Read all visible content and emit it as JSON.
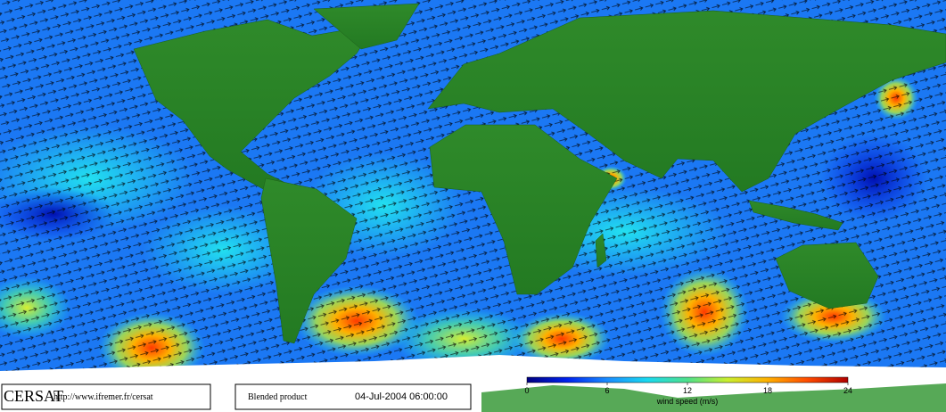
{
  "logo": "CERSAT",
  "url": "http://www.ifremer.fr/cersat",
  "product": "Blended product",
  "timestamp": "04-Jul-2004 06:00:00",
  "colorbar": {
    "label": "wind speed (m/s)",
    "range": [
      0,
      24
    ],
    "ticks": [
      0,
      6,
      12,
      18,
      24
    ],
    "colors": [
      "#000080",
      "#0022ee",
      "#1a8cff",
      "#19d9f0",
      "#4fe08a",
      "#c9ee2e",
      "#ffb000",
      "#ff4a00",
      "#b00000"
    ]
  }
}
